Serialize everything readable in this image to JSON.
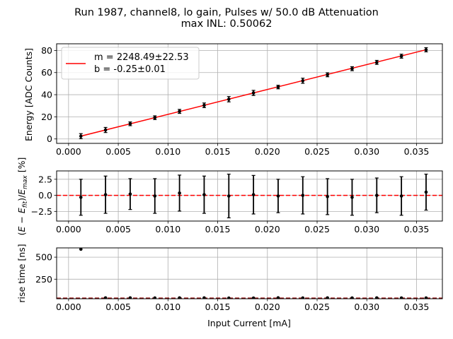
{
  "figure": {
    "title_line1": "Run 1987, channel8, lo gain, Pulses w/ 50.0 dB Attenuation",
    "title_line2": "max INL: 0.50062"
  },
  "chart_data": [
    {
      "type": "line",
      "ylabel": "Energy [ADC Counts]",
      "xlim": [
        -0.0012,
        0.0376
      ],
      "ylim": [
        -4,
        86
      ],
      "xticks": [
        0.0,
        0.005,
        0.01,
        0.015,
        0.02,
        0.025,
        0.03,
        0.035
      ],
      "xtick_labels": [
        "0.000",
        "0.005",
        "0.010",
        "0.015",
        "0.020",
        "0.025",
        "0.030",
        "0.035"
      ],
      "yticks": [
        0,
        20,
        40,
        60,
        80
      ],
      "ytick_labels": [
        "0",
        "20",
        "40",
        "60",
        "80"
      ],
      "grid": true,
      "legend": {
        "placement": "top-left",
        "line1": "m = 2248.49±22.53",
        "line2": "b = -0.25±0.01"
      },
      "fit": {
        "slope": 2248.49,
        "intercept": -0.25,
        "color": "#ff0000"
      },
      "series": [
        {
          "x": [
            0.00124,
            0.00372,
            0.0062,
            0.00868,
            0.01116,
            0.01364,
            0.01612,
            0.0186,
            0.02108,
            0.02356,
            0.02604,
            0.02852,
            0.031,
            0.03348,
            0.03596
          ],
          "y": [
            2.5,
            8.1,
            13.7,
            19.2,
            24.9,
            30.4,
            35.9,
            41.6,
            46.9,
            52.6,
            58.0,
            63.5,
            69.2,
            74.8,
            80.6
          ],
          "yerr": [
            2.3,
            2.3,
            1.7,
            1.7,
            1.8,
            2.1,
            2.4,
            2.3,
            1.6,
            2.3,
            1.8,
            1.8,
            1.8,
            1.8,
            1.9
          ]
        }
      ]
    },
    {
      "type": "scatter",
      "ylabel": "(E − E_fit)/E_max [%]",
      "ylabel_parts": [
        "(",
        "E",
        " − ",
        "E",
        "fit",
        ")/",
        "E",
        "max",
        " [%]"
      ],
      "xlim": [
        -0.0012,
        0.0376
      ],
      "ylim": [
        -4.0,
        3.8
      ],
      "xticks": [
        0.0,
        0.005,
        0.01,
        0.015,
        0.02,
        0.025,
        0.03,
        0.035
      ],
      "xtick_labels": [
        "0.000",
        "0.005",
        "0.010",
        "0.015",
        "0.020",
        "0.025",
        "0.030",
        "0.035"
      ],
      "yticks": [
        -2.5,
        0.0,
        2.5
      ],
      "ytick_labels": [
        "−2.5",
        "0.0",
        "2.5"
      ],
      "grid": true,
      "reference_line": {
        "y": 0.0,
        "style": "dashed",
        "color": "#ff0000"
      },
      "series": [
        {
          "x": [
            0.00124,
            0.00372,
            0.0062,
            0.00868,
            0.01116,
            0.01364,
            0.01612,
            0.0186,
            0.02108,
            0.02356,
            0.02604,
            0.02852,
            0.031,
            0.03348,
            0.03596
          ],
          "y": [
            -0.3,
            0.1,
            0.2,
            -0.1,
            0.35,
            0.1,
            -0.1,
            0.1,
            -0.1,
            0.0,
            -0.2,
            -0.3,
            0.0,
            -0.1,
            0.5
          ],
          "yerr": [
            2.8,
            2.9,
            2.4,
            2.7,
            2.8,
            2.9,
            3.4,
            3.0,
            2.6,
            2.9,
            2.8,
            2.8,
            2.7,
            3.0,
            2.8
          ]
        }
      ]
    },
    {
      "type": "scatter",
      "ylabel": "rise time [ns]",
      "xlabel": "Input Current [mA]",
      "xlim": [
        -0.0012,
        0.0376
      ],
      "ylim": [
        28,
        605
      ],
      "xticks": [
        0.0,
        0.005,
        0.01,
        0.015,
        0.02,
        0.025,
        0.03,
        0.035
      ],
      "xtick_labels": [
        "0.000",
        "0.005",
        "0.010",
        "0.015",
        "0.020",
        "0.025",
        "0.030",
        "0.035"
      ],
      "yticks": [
        250,
        500
      ],
      "ytick_labels": [
        "250",
        "500"
      ],
      "grid": true,
      "reference_line": {
        "y": 35,
        "style": "dashed",
        "color": "#8b0000"
      },
      "series": [
        {
          "x": [
            0.00124,
            0.00372,
            0.0062,
            0.00868,
            0.01116,
            0.01364,
            0.01612,
            0.0186,
            0.02108,
            0.02356,
            0.02604,
            0.02852,
            0.031,
            0.03348,
            0.03596
          ],
          "y": [
            590,
            38,
            38,
            37,
            38,
            38,
            36,
            36,
            39,
            37,
            38,
            37,
            38,
            37,
            37
          ]
        }
      ]
    }
  ]
}
